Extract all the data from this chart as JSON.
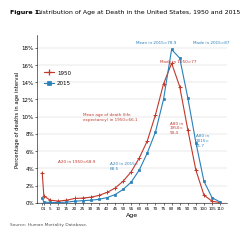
{
  "title_bold": "Figure 1.",
  "title_rest": " Distribution of Age at Death in the United States, 1950 and 2015",
  "xlabel": "Age",
  "ylabel": "Percentage of deaths in age interval",
  "source": "Source: Human Mortality Database.",
  "ages": [
    0,
    1,
    5,
    10,
    15,
    20,
    25,
    30,
    35,
    40,
    45,
    50,
    55,
    60,
    65,
    70,
    75,
    80,
    85,
    90,
    95,
    100,
    105,
    110
  ],
  "age_labels": [
    "0",
    "1",
    "5",
    "10",
    "15",
    "20",
    "25",
    "30",
    "35",
    "40",
    "45",
    "50",
    "55",
    "60",
    "65",
    "70",
    "75",
    "80",
    "85",
    "90",
    "95",
    "100",
    "105",
    "110"
  ],
  "y1950": [
    3.5,
    0.8,
    0.3,
    0.2,
    0.3,
    0.5,
    0.55,
    0.65,
    0.85,
    1.2,
    1.7,
    2.5,
    3.6,
    5.2,
    7.2,
    10.2,
    13.8,
    16.2,
    13.5,
    8.5,
    3.8,
    0.9,
    0.18,
    0.02
  ],
  "y2015": [
    0.55,
    0.08,
    0.04,
    0.03,
    0.08,
    0.18,
    0.25,
    0.3,
    0.4,
    0.6,
    0.95,
    1.55,
    2.4,
    3.8,
    5.8,
    8.2,
    12.0,
    17.8,
    16.8,
    12.2,
    7.0,
    2.5,
    0.6,
    0.08
  ],
  "color_1950": "#c0392b",
  "color_2015": "#2980b9",
  "yticks": [
    0,
    2,
    4,
    6,
    8,
    10,
    12,
    14,
    16,
    18
  ],
  "ylim": [
    0,
    19.5
  ],
  "xlim": [
    -3,
    114
  ]
}
